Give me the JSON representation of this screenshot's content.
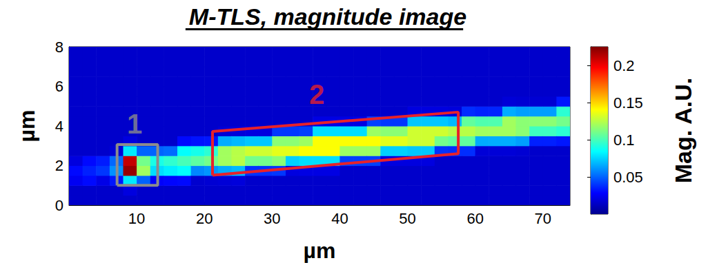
{
  "chart_data": {
    "type": "heatmap",
    "title": "M-TLS, magnitude image",
    "xlabel": "µm",
    "ylabel": "µm",
    "xlim": [
      0,
      74
    ],
    "ylim": [
      0,
      8
    ],
    "xticks": [
      10,
      20,
      30,
      40,
      50,
      60,
      70
    ],
    "yticks": [
      0,
      2,
      4,
      6,
      8
    ],
    "x_edges": [
      0,
      2,
      4,
      6,
      8,
      10,
      12,
      14,
      16,
      18,
      20,
      22,
      24,
      26,
      28,
      30,
      32,
      34,
      36,
      38,
      40,
      42,
      44,
      46,
      48,
      50,
      52,
      54,
      56,
      58,
      60,
      62,
      64,
      66,
      68,
      70,
      72,
      74
    ],
    "y_edges": [
      0,
      0.5,
      1,
      1.5,
      2,
      2.5,
      3,
      3.5,
      4,
      4.5,
      5,
      5.5,
      6,
      6.5,
      7,
      7.5,
      8
    ],
    "cells": [
      [
        0.015,
        0.015,
        0.025,
        0.03,
        0.02,
        0.015,
        0.015,
        0.015,
        0.015,
        0.015,
        0.015,
        0.015,
        0.015,
        0.015,
        0.015,
        0.015
      ],
      [
        0.015,
        0.015,
        0.03,
        0.035,
        0.03,
        0.015,
        0.015,
        0.015,
        0.015,
        0.015,
        0.015,
        0.015,
        0.015,
        0.015,
        0.015,
        0.015
      ],
      [
        0.015,
        0.015,
        0.022,
        0.04,
        0.034,
        0.015,
        0.015,
        0.015,
        0.015,
        0.015,
        0.015,
        0.015,
        0.015,
        0.015,
        0.015,
        0.015
      ],
      [
        0.015,
        0.015,
        0.033,
        0.06,
        0.051,
        0.018,
        0.015,
        0.015,
        0.015,
        0.015,
        0.015,
        0.015,
        0.015,
        0.015,
        0.015,
        0.015
      ],
      [
        0.015,
        0.02,
        0.08,
        0.22,
        0.21,
        0.08,
        0.02,
        0.015,
        0.015,
        0.015,
        0.015,
        0.015,
        0.015,
        0.015,
        0.015,
        0.015
      ],
      [
        0.015,
        0.015,
        0.05,
        0.12,
        0.11,
        0.05,
        0.015,
        0.015,
        0.015,
        0.015,
        0.015,
        0.015,
        0.015,
        0.015,
        0.015,
        0.015
      ],
      [
        0.015,
        0.015,
        0.027,
        0.077,
        0.09,
        0.05,
        0.015,
        0.015,
        0.015,
        0.015,
        0.015,
        0.015,
        0.015,
        0.015,
        0.015,
        0.015
      ],
      [
        0.015,
        0.015,
        0.029,
        0.081,
        0.095,
        0.052,
        0.015,
        0.015,
        0.015,
        0.015,
        0.015,
        0.015,
        0.015,
        0.015,
        0.015,
        0.015
      ],
      [
        0.015,
        0.015,
        0.03,
        0.085,
        0.1,
        0.085,
        0.03,
        0.015,
        0.015,
        0.015,
        0.015,
        0.015,
        0.015,
        0.015,
        0.015,
        0.015
      ],
      [
        0.015,
        0.015,
        0.016,
        0.058,
        0.105,
        0.089,
        0.032,
        0.015,
        0.015,
        0.015,
        0.015,
        0.015,
        0.015,
        0.015,
        0.015,
        0.015
      ],
      [
        0.015,
        0.015,
        0.017,
        0.061,
        0.11,
        0.094,
        0.033,
        0.015,
        0.015,
        0.015,
        0.015,
        0.015,
        0.015,
        0.015,
        0.015,
        0.015
      ],
      [
        0.015,
        0.015,
        0.018,
        0.066,
        0.12,
        0.12,
        0.066,
        0.018,
        0.015,
        0.015,
        0.015,
        0.015,
        0.015,
        0.015,
        0.015,
        0.015
      ],
      [
        0.015,
        0.015,
        0.019,
        0.069,
        0.125,
        0.125,
        0.069,
        0.019,
        0.015,
        0.015,
        0.015,
        0.015,
        0.015,
        0.015,
        0.015,
        0.015
      ],
      [
        0.015,
        0.015,
        0.015,
        0.039,
        0.11,
        0.13,
        0.072,
        0.02,
        0.015,
        0.015,
        0.015,
        0.015,
        0.015,
        0.015,
        0.015,
        0.015
      ],
      [
        0.015,
        0.015,
        0.015,
        0.039,
        0.11,
        0.13,
        0.072,
        0.02,
        0.015,
        0.015,
        0.015,
        0.015,
        0.015,
        0.015,
        0.015,
        0.015
      ],
      [
        0.015,
        0.015,
        0.015,
        0.04,
        0.115,
        0.135,
        0.115,
        0.04,
        0.015,
        0.015,
        0.015,
        0.015,
        0.015,
        0.015,
        0.015,
        0.015
      ],
      [
        0.015,
        0.015,
        0.015,
        0.02,
        0.074,
        0.135,
        0.115,
        0.04,
        0.015,
        0.015,
        0.015,
        0.015,
        0.015,
        0.015,
        0.015,
        0.015
      ],
      [
        0.015,
        0.015,
        0.015,
        0.021,
        0.077,
        0.14,
        0.119,
        0.042,
        0.015,
        0.015,
        0.015,
        0.015,
        0.015,
        0.015,
        0.015,
        0.015
      ],
      [
        0.015,
        0.015,
        0.015,
        0.021,
        0.077,
        0.14,
        0.14,
        0.077,
        0.021,
        0.015,
        0.015,
        0.015,
        0.015,
        0.015,
        0.015,
        0.015
      ],
      [
        0.015,
        0.015,
        0.015,
        0.021,
        0.077,
        0.14,
        0.14,
        0.077,
        0.021,
        0.015,
        0.015,
        0.015,
        0.015,
        0.015,
        0.015,
        0.015
      ],
      [
        0.015,
        0.015,
        0.015,
        0.015,
        0.042,
        0.119,
        0.14,
        0.077,
        0.021,
        0.015,
        0.015,
        0.015,
        0.015,
        0.015,
        0.015,
        0.015
      ],
      [
        0.015,
        0.015,
        0.015,
        0.015,
        0.042,
        0.119,
        0.14,
        0.077,
        0.021,
        0.015,
        0.015,
        0.015,
        0.015,
        0.015,
        0.015,
        0.015
      ],
      [
        0.015,
        0.015,
        0.015,
        0.015,
        0.042,
        0.119,
        0.14,
        0.119,
        0.042,
        0.015,
        0.015,
        0.015,
        0.015,
        0.015,
        0.015,
        0.015
      ],
      [
        0.015,
        0.015,
        0.015,
        0.015,
        0.02,
        0.074,
        0.135,
        0.115,
        0.04,
        0.015,
        0.015,
        0.015,
        0.015,
        0.015,
        0.015,
        0.015
      ],
      [
        0.015,
        0.015,
        0.015,
        0.015,
        0.02,
        0.074,
        0.135,
        0.115,
        0.04,
        0.015,
        0.015,
        0.015,
        0.015,
        0.015,
        0.015,
        0.015
      ],
      [
        0.015,
        0.015,
        0.015,
        0.015,
        0.02,
        0.072,
        0.13,
        0.13,
        0.072,
        0.02,
        0.015,
        0.015,
        0.015,
        0.015,
        0.015,
        0.015
      ],
      [
        0.015,
        0.015,
        0.015,
        0.015,
        0.02,
        0.072,
        0.13,
        0.13,
        0.072,
        0.02,
        0.015,
        0.015,
        0.015,
        0.015,
        0.015,
        0.015
      ],
      [
        0.015,
        0.015,
        0.015,
        0.015,
        0.015,
        0.039,
        0.11,
        0.13,
        0.072,
        0.02,
        0.015,
        0.015,
        0.015,
        0.015,
        0.015,
        0.015
      ],
      [
        0.015,
        0.015,
        0.015,
        0.015,
        0.015,
        0.038,
        0.106,
        0.125,
        0.069,
        0.019,
        0.015,
        0.015,
        0.015,
        0.015,
        0.015,
        0.015
      ],
      [
        0.015,
        0.015,
        0.015,
        0.015,
        0.015,
        0.038,
        0.106,
        0.125,
        0.106,
        0.038,
        0.015,
        0.015,
        0.015,
        0.015,
        0.015,
        0.015
      ],
      [
        0.015,
        0.015,
        0.015,
        0.015,
        0.015,
        0.018,
        0.066,
        0.12,
        0.102,
        0.036,
        0.015,
        0.015,
        0.015,
        0.015,
        0.015,
        0.015
      ],
      [
        0.015,
        0.015,
        0.015,
        0.015,
        0.015,
        0.018,
        0.066,
        0.12,
        0.102,
        0.036,
        0.015,
        0.015,
        0.015,
        0.015,
        0.015,
        0.015
      ],
      [
        0.015,
        0.015,
        0.015,
        0.015,
        0.015,
        0.018,
        0.066,
        0.12,
        0.12,
        0.066,
        0.018,
        0.015,
        0.015,
        0.015,
        0.015,
        0.015
      ],
      [
        0.015,
        0.015,
        0.015,
        0.015,
        0.015,
        0.017,
        0.063,
        0.115,
        0.115,
        0.063,
        0.017,
        0.015,
        0.015,
        0.015,
        0.015,
        0.015
      ],
      [
        0.015,
        0.015,
        0.015,
        0.015,
        0.015,
        0.015,
        0.035,
        0.098,
        0.115,
        0.063,
        0.017,
        0.015,
        0.015,
        0.015,
        0.015,
        0.015
      ],
      [
        0.015,
        0.015,
        0.015,
        0.015,
        0.015,
        0.015,
        0.035,
        0.098,
        0.115,
        0.063,
        0.017,
        0.015,
        0.015,
        0.015,
        0.015,
        0.015
      ],
      [
        0.015,
        0.015,
        0.015,
        0.015,
        0.015,
        0.015,
        0.033,
        0.094,
        0.11,
        0.094,
        0.033,
        0.015,
        0.015,
        0.015,
        0.015,
        0.015
      ]
    ],
    "colorbar": {
      "label": "Mag. A.U.",
      "range": [
        0,
        0.225
      ],
      "ticks": [
        0.05,
        0.1,
        0.15,
        0.2
      ]
    },
    "annotations": [
      {
        "text": "1",
        "color": "#8c8c8c",
        "x": 9.7,
        "y": 4.1,
        "outline": [
          [
            7.1,
            1.0
          ],
          [
            13.1,
            1.0
          ],
          [
            13.1,
            3.06
          ],
          [
            7.1,
            3.06
          ]
        ]
      },
      {
        "text": "2",
        "color": "#e8212a",
        "x": 36.6,
        "y": 5.6,
        "outline": [
          [
            21.2,
            1.51
          ],
          [
            57.5,
            2.6
          ],
          [
            57.5,
            4.7
          ],
          [
            21.2,
            3.72
          ]
        ]
      }
    ]
  }
}
